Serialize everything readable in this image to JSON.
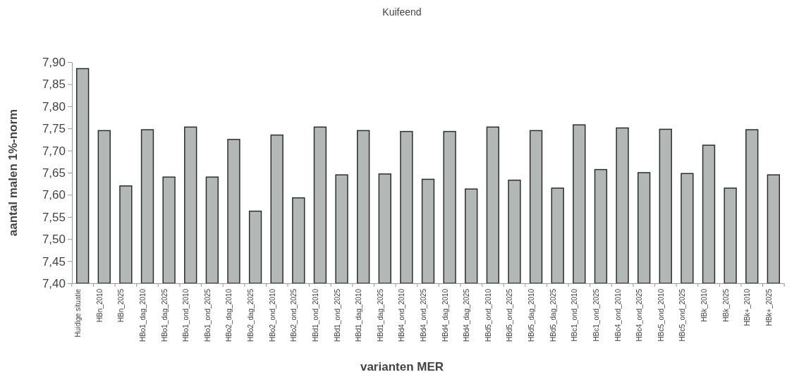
{
  "chart_data": {
    "type": "bar",
    "title": "Kuifeend",
    "xlabel": "varianten MER",
    "ylabel": "aantal malen 1%-norm",
    "categories": [
      "Huidige situatie",
      "HBn_2010",
      "HBn_2025",
      "HBo1_dag_2010",
      "HBo1_dag_2025",
      "HBo1_ond_2010",
      "HBo1_ond_2025",
      "HBo2_dag_2010",
      "HBo2_dag_2025",
      "HBo2_ond_2010",
      "HBo2_ond_2025",
      "HBd1_ond_2010",
      "HBd1_ond_2025",
      "HBd1_dag_2010",
      "HBd1_dag_2025",
      "HBd4_ond_2010",
      "HBd4_ond_2025",
      "HBd4_dag_2010",
      "HBd4_dag_2025",
      "HBd5_ond_2010",
      "HBd5_ond_2025",
      "HBd5_dag_2010",
      "HBd5_dag_2025",
      "HBc1_ond_2010",
      "HBc1_ond_2025",
      "HBc4_ond_2010",
      "HBc4_ond_2025",
      "HBc5_ond_2010",
      "HBc5_ond_2025",
      "HBk_2010",
      "HBk_2025",
      "HBk+_2010",
      "HBk+_2025"
    ],
    "values": [
      7.885,
      7.745,
      7.62,
      7.747,
      7.64,
      7.753,
      7.64,
      7.725,
      7.563,
      7.735,
      7.593,
      7.753,
      7.645,
      7.745,
      7.647,
      7.743,
      7.635,
      7.743,
      7.613,
      7.753,
      7.633,
      7.745,
      7.615,
      7.758,
      7.657,
      7.751,
      7.65,
      7.748,
      7.648,
      7.712,
      7.615,
      7.747,
      7.645
    ],
    "color": "#b3b8b7",
    "ylim": [
      7.4,
      7.9
    ],
    "yticks": [
      {
        "value": 7.4,
        "label": "7,40"
      },
      {
        "value": 7.45,
        "label": "7,45"
      },
      {
        "value": 7.5,
        "label": "7,50"
      },
      {
        "value": 7.55,
        "label": "7,55"
      },
      {
        "value": 7.6,
        "label": "7,60"
      },
      {
        "value": 7.65,
        "label": "7,65"
      },
      {
        "value": 7.7,
        "label": "7,70"
      },
      {
        "value": 7.75,
        "label": "7,75"
      },
      {
        "value": 7.8,
        "label": "7,80"
      },
      {
        "value": 7.85,
        "label": "7,85"
      },
      {
        "value": 7.9,
        "label": "7,90"
      }
    ],
    "grid": false
  }
}
